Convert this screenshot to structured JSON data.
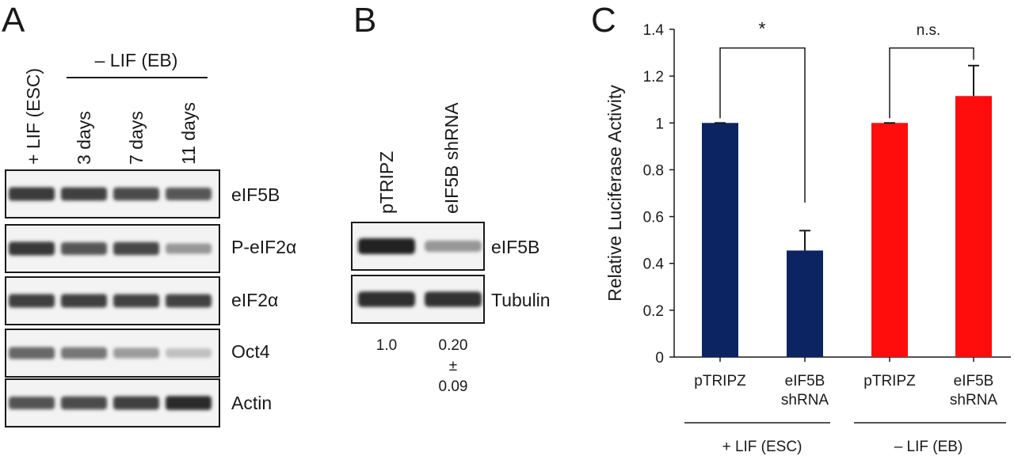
{
  "panels": [
    {
      "letter": "A"
    },
    {
      "letter": "B"
    },
    {
      "letter": "C"
    }
  ],
  "panel_a": {
    "group_label": "– LIF (EB)",
    "lanes": [
      "+ LIF (ESC)",
      "3 days",
      "7 days",
      "11 days"
    ],
    "rows": [
      {
        "label": "eIF5B",
        "intensities": [
          0.88,
          0.85,
          0.8,
          0.74
        ]
      },
      {
        "label": "P-eIF2α",
        "intensities": [
          0.9,
          0.74,
          0.82,
          0.42
        ]
      },
      {
        "label": "eIF2α",
        "intensities": [
          0.86,
          0.86,
          0.84,
          0.84
        ]
      },
      {
        "label": "Oct4",
        "intensities": [
          0.66,
          0.58,
          0.4,
          0.22
        ]
      },
      {
        "label": "Actin",
        "intensities": [
          0.76,
          0.8,
          0.86,
          0.97
        ]
      }
    ]
  },
  "panel_b": {
    "lanes": [
      "pTRIPZ",
      "eIF5B shRNA"
    ],
    "rows": [
      {
        "label": "eIF5B",
        "intensities": [
          1.0,
          0.42
        ]
      },
      {
        "label": "Tubulin",
        "intensities": [
          0.95,
          0.92
        ]
      }
    ],
    "quant": [
      "1.0",
      "0.20",
      "±",
      "0.09"
    ]
  },
  "panel_c": {
    "chart_data": {
      "type": "bar",
      "categories": [
        "pTRIPZ",
        "eIF5B shRNA",
        "pTRIPZ",
        "eIF5B shRNA"
      ],
      "category_lines": [
        [
          "pTRIPZ"
        ],
        [
          "eIF5B",
          "shRNA"
        ],
        [
          "pTRIPZ"
        ],
        [
          "eIF5B",
          "shRNA"
        ]
      ],
      "values": [
        1.0,
        0.455,
        1.0,
        1.115
      ],
      "errors": [
        0.0,
        0.085,
        0.0,
        0.13
      ],
      "colors": [
        "#0c2461",
        "#0c2461",
        "#ff0d0d",
        "#ff0d0d"
      ],
      "ylabel": "Relative Luciferase Activity",
      "ylim": [
        0,
        1.4
      ],
      "yticks": [
        "0",
        "0.2",
        "0.4",
        "0.6",
        "0.8",
        "1",
        "1.2",
        "1.4"
      ],
      "groups": [
        "+ LIF (ESC)",
        "– LIF (EB)"
      ],
      "significance": [
        "*",
        "n.s."
      ],
      "grid": false
    }
  }
}
